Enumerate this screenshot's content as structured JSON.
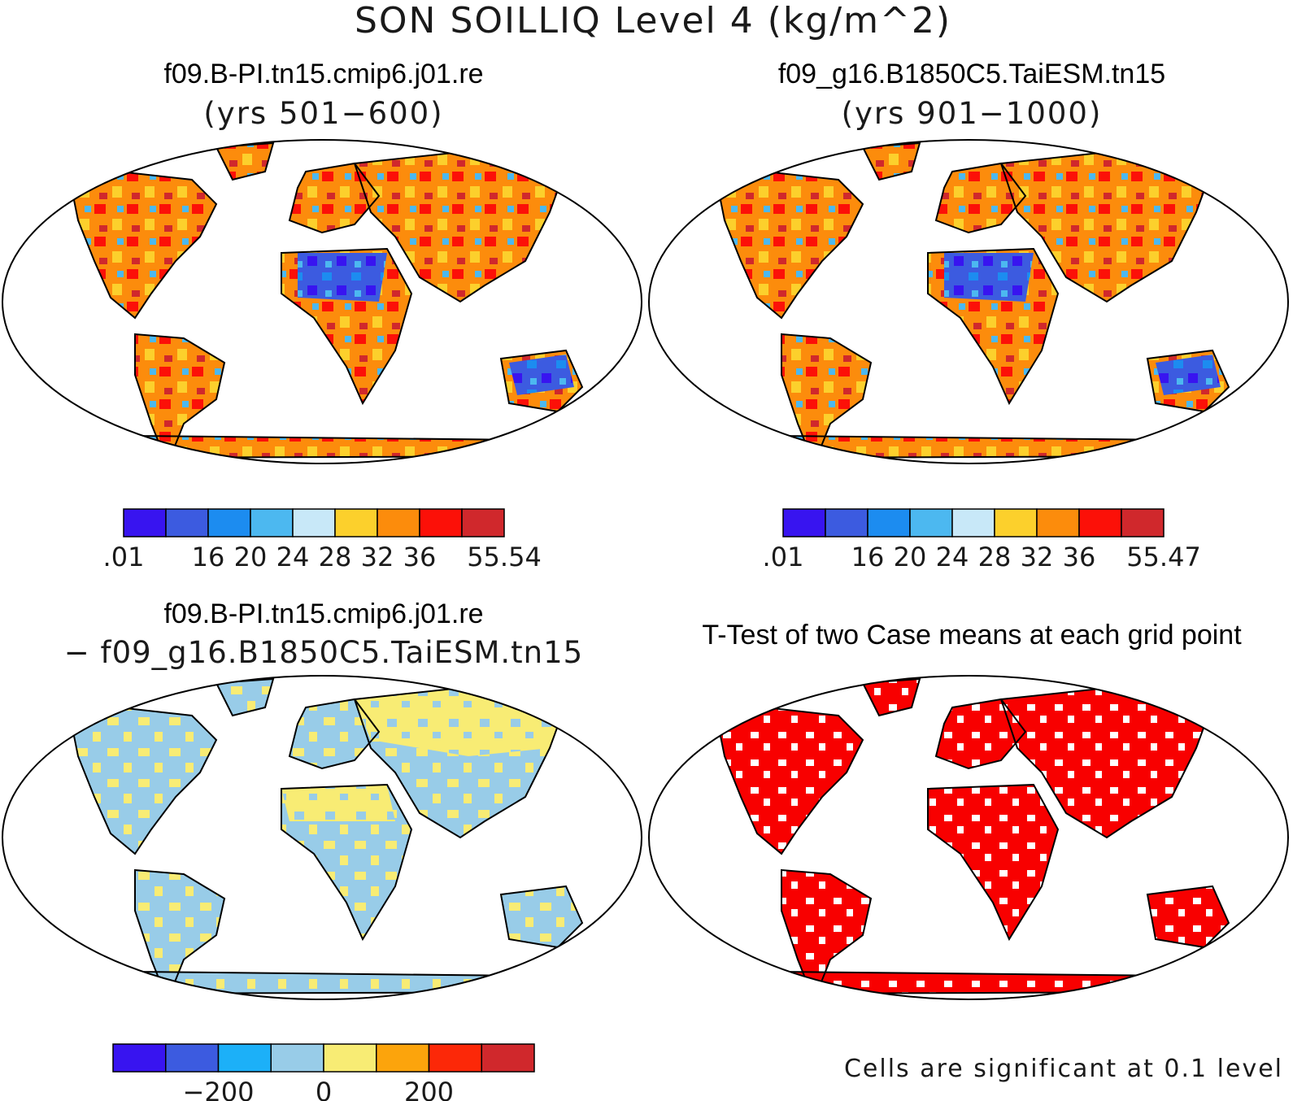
{
  "figure": {
    "title": "SON SOILLIQ Level 4 (kg/m^2)"
  },
  "panels": [
    {
      "case": "f09.B-PI.tn15.cmip6.j01.re",
      "subtitle": "(yrs 501−600)",
      "colorbar": {
        "colors": [
          "#3814f0",
          "#3c5be0",
          "#1c8cf0",
          "#4cb8f0",
          "#c8e8f8",
          "#fcd02c",
          "#fc8c0c",
          "#fc1008",
          "#d0282c"
        ],
        "tick_labels": [
          ".01",
          "",
          "16",
          "20",
          "24",
          "28",
          "32",
          "36",
          "",
          "55.54"
        ]
      }
    },
    {
      "case": "f09_g16.B1850C5.TaiESM.tn15",
      "subtitle": "(yrs 901−1000)",
      "colorbar": {
        "colors": [
          "#3814f0",
          "#3c5be0",
          "#1c8cf0",
          "#4cb8f0",
          "#c8e8f8",
          "#fcd02c",
          "#fc8c0c",
          "#fc1008",
          "#d0282c"
        ],
        "tick_labels": [
          ".01",
          "",
          "16",
          "20",
          "24",
          "28",
          "32",
          "36",
          "",
          "55.47"
        ]
      }
    },
    {
      "case": "f09.B-PI.tn15.cmip6.j01.re",
      "subtitle": "− f09_g16.B1850C5.TaiESM.tn15",
      "colorbar": {
        "colors": [
          "#3814f0",
          "#3c5be0",
          "#1cb0f8",
          "#98cce8",
          "#f8ec74",
          "#fca40c",
          "#fc2808",
          "#d0282c"
        ],
        "tick_labels": [
          "",
          "",
          "−200",
          "",
          "0",
          "",
          "200",
          "",
          ""
        ]
      }
    },
    {
      "title": "T-Test of two Case means at each grid point",
      "note": "Cells are significant at 0.1 level",
      "significant_color": "#f80000"
    }
  ]
}
